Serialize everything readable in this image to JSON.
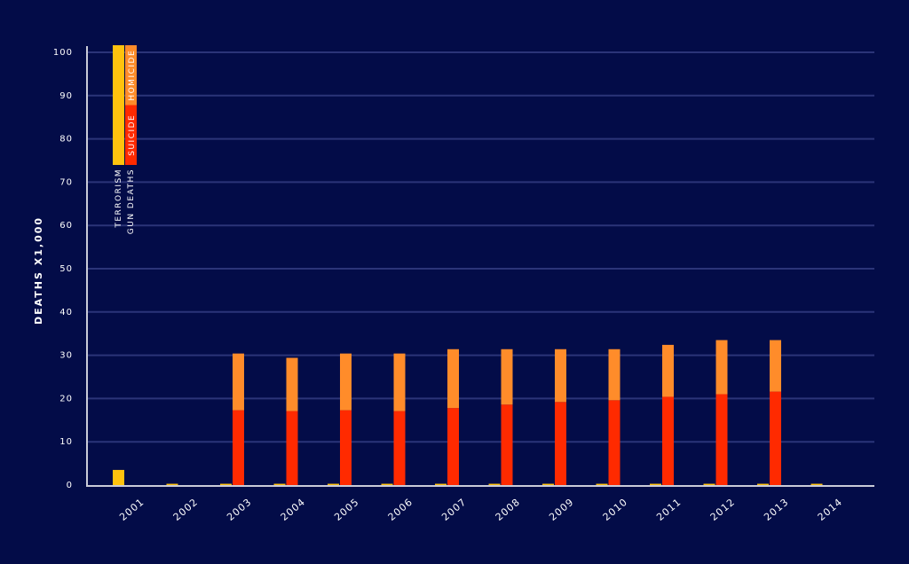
{
  "chart_data": {
    "type": "bar",
    "stacked": true,
    "y_label": "DEATHS X1,000",
    "categories": [
      "2001",
      "2002",
      "2003",
      "2004",
      "2005",
      "2006",
      "2007",
      "2008",
      "2009",
      "2010",
      "2011",
      "2012",
      "2013",
      "2014"
    ],
    "groups": [
      {
        "name": "TERRORISM",
        "series": [
          {
            "color": "#ffc20e",
            "values": [
              3.5,
              0.3,
              0.3,
              0.3,
              0.3,
              0.3,
              0.3,
              0.3,
              0.3,
              0.3,
              0.3,
              0.3,
              0.3,
              0.3
            ]
          }
        ]
      },
      {
        "name": "GUN DEATHS",
        "series": [
          {
            "name": "SUICIDE",
            "color": "#ff2a00",
            "values": [
              null,
              null,
              17.3,
              17.1,
              17.3,
              17.1,
              17.8,
              18.6,
              19.2,
              19.6,
              20.4,
              21.0,
              21.6,
              null
            ]
          },
          {
            "name": "HOMICIDE",
            "color": "#ff8c2a",
            "values": [
              null,
              null,
              13.1,
              12.3,
              13.1,
              13.3,
              13.6,
              12.8,
              12.2,
              11.8,
              12.0,
              12.5,
              11.9,
              null
            ]
          }
        ]
      }
    ],
    "ylim": [
      0,
      100
    ],
    "yticks": [
      0,
      10,
      20,
      30,
      40,
      50,
      60,
      70,
      80,
      90,
      100
    ],
    "grid": true
  }
}
